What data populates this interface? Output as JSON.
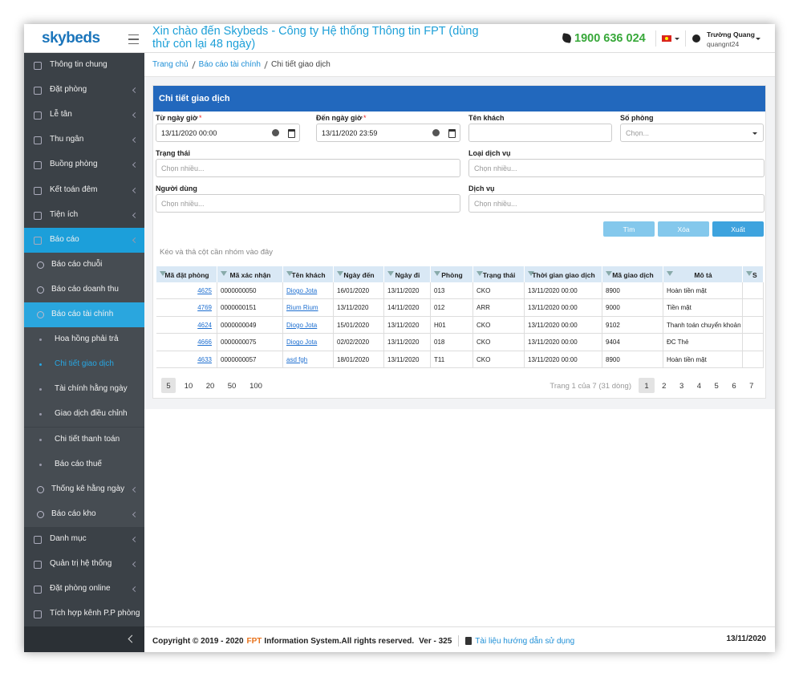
{
  "header": {
    "logo": "skybeds",
    "welcome": "Xin chào đến Skybeds - Công ty Hệ thống Thông tin FPT (dùng thử còn lại 48 ngày)",
    "phone": "1900 636 024",
    "user_name": "Trường Quang",
    "user_id": "quangnt24"
  },
  "sidebar": {
    "items": [
      {
        "label": "Thông tin chung",
        "level": 0
      },
      {
        "label": "Đặt phòng",
        "level": 0,
        "has_children": true
      },
      {
        "label": "Lễ tân",
        "level": 0,
        "has_children": true
      },
      {
        "label": "Thu ngân",
        "level": 0,
        "has_children": true
      },
      {
        "label": "Buồng phòng",
        "level": 0,
        "has_children": true
      },
      {
        "label": "Kết toán đêm",
        "level": 0,
        "has_children": true
      },
      {
        "label": "Tiện ích",
        "level": 0,
        "has_children": true
      },
      {
        "label": "Báo cáo",
        "level": 0,
        "has_children": true,
        "active": true
      },
      {
        "label": "Báo cáo chuỗi",
        "level": 1
      },
      {
        "label": "Báo cáo doanh thu",
        "level": 1
      },
      {
        "label": "Báo cáo tài chính",
        "level": 1,
        "active": true
      },
      {
        "label": "Hoa hồng phải trả",
        "level": 2
      },
      {
        "label": "Chi tiết giao dịch",
        "level": 2,
        "active": true
      },
      {
        "label": "Tài chính hằng ngày",
        "level": 2
      },
      {
        "label": "Giao dịch điều chỉnh",
        "level": 2
      },
      {
        "label": "Chi tiết thanh toán",
        "level": 2
      },
      {
        "label": "Báo cáo thuế",
        "level": 2
      },
      {
        "label": "Thống kê hằng ngày",
        "level": 1,
        "has_children": true
      },
      {
        "label": "Báo cáo kho",
        "level": 1,
        "has_children": true
      },
      {
        "label": "Danh mục",
        "level": 0,
        "has_children": true
      },
      {
        "label": "Quản trị hệ thống",
        "level": 0,
        "has_children": true
      },
      {
        "label": "Đặt phòng online",
        "level": 0,
        "has_children": true
      },
      {
        "label": "Tích hợp kênh P.P phòng",
        "level": 0
      }
    ]
  },
  "breadcrumb": [
    "Trang chủ",
    "Báo cáo tài chính",
    "Chi tiết giao dịch"
  ],
  "panel_title": "Chi tiết giao dịch",
  "form": {
    "fields": [
      {
        "label": "Từ ngày giờ",
        "required": "*",
        "value": "13/11/2020 00:00"
      },
      {
        "label": "Đến ngày giờ",
        "required": "*",
        "value": "13/11/2020 23:59"
      },
      {
        "label": "Tên khách"
      },
      {
        "label": "Số phòng",
        "placeholder": "Chọn..."
      },
      {
        "label": "Trạng thái",
        "placeholder": "Chọn nhiều..."
      },
      {
        "label": "Loại dịch vụ",
        "placeholder": "Chọn nhiều..."
      },
      {
        "label": "Người dùng",
        "placeholder": "Chọn nhiều..."
      },
      {
        "label": "Dịch vụ",
        "placeholder": "Chọn nhiều..."
      }
    ]
  },
  "buttons": [
    "Tìm",
    "Xóa",
    "Xuất"
  ],
  "group_hint": "Kéo và thả cột cần nhóm vào đây",
  "table": {
    "columns": [
      "Mã đặt phòng",
      "Mã xác nhận",
      "Tên khách",
      "Ngày đến",
      "Ngày đi",
      "Phòng",
      "Trạng thái",
      "Thời gian giao dịch",
      "Mã giao dịch",
      "Mô tả",
      "S"
    ],
    "rows": [
      [
        "4625",
        "0000000050",
        "Diogo Jota",
        "16/01/2020",
        "13/11/2020",
        "013",
        "CKO",
        "13/11/2020 00:00",
        "8900",
        "Hoàn tiền mặt"
      ],
      [
        "4769",
        "0000000151",
        "Rium Rium",
        "13/11/2020",
        "14/11/2020",
        "012",
        "ARR",
        "13/11/2020 00:00",
        "9000",
        "Tiền mặt"
      ],
      [
        "4624",
        "0000000049",
        "Diogo Jota",
        "15/01/2020",
        "13/11/2020",
        "H01",
        "CKO",
        "13/11/2020 00:00",
        "9102",
        "Thanh toán chuyển khoản"
      ],
      [
        "4666",
        "0000000075",
        "Diogo Jota",
        "02/02/2020",
        "13/11/2020",
        "018",
        "CKO",
        "13/11/2020 00:00",
        "9404",
        "ĐC Thẻ"
      ],
      [
        "4633",
        "0000000057",
        "asd fgh",
        "18/01/2020",
        "13/11/2020",
        "T11",
        "CKO",
        "13/11/2020 00:00",
        "8900",
        "Hoàn tiền mặt"
      ]
    ]
  },
  "pagination": {
    "page_sizes": [
      5,
      10,
      20,
      50,
      100
    ],
    "info": "Trang 1 của 7 (31 dòng)",
    "pages": [
      1,
      2,
      3,
      4,
      5,
      6,
      7
    ]
  },
  "footer": {
    "copyright": "Copyright © 2019 - 2020",
    "brand": "FPT",
    "rights": "Information System.All rights reserved.",
    "version": "Ver - 325",
    "guide": "Tài liệu hướng dẫn sử dụng",
    "date": "13/11/2020"
  }
}
